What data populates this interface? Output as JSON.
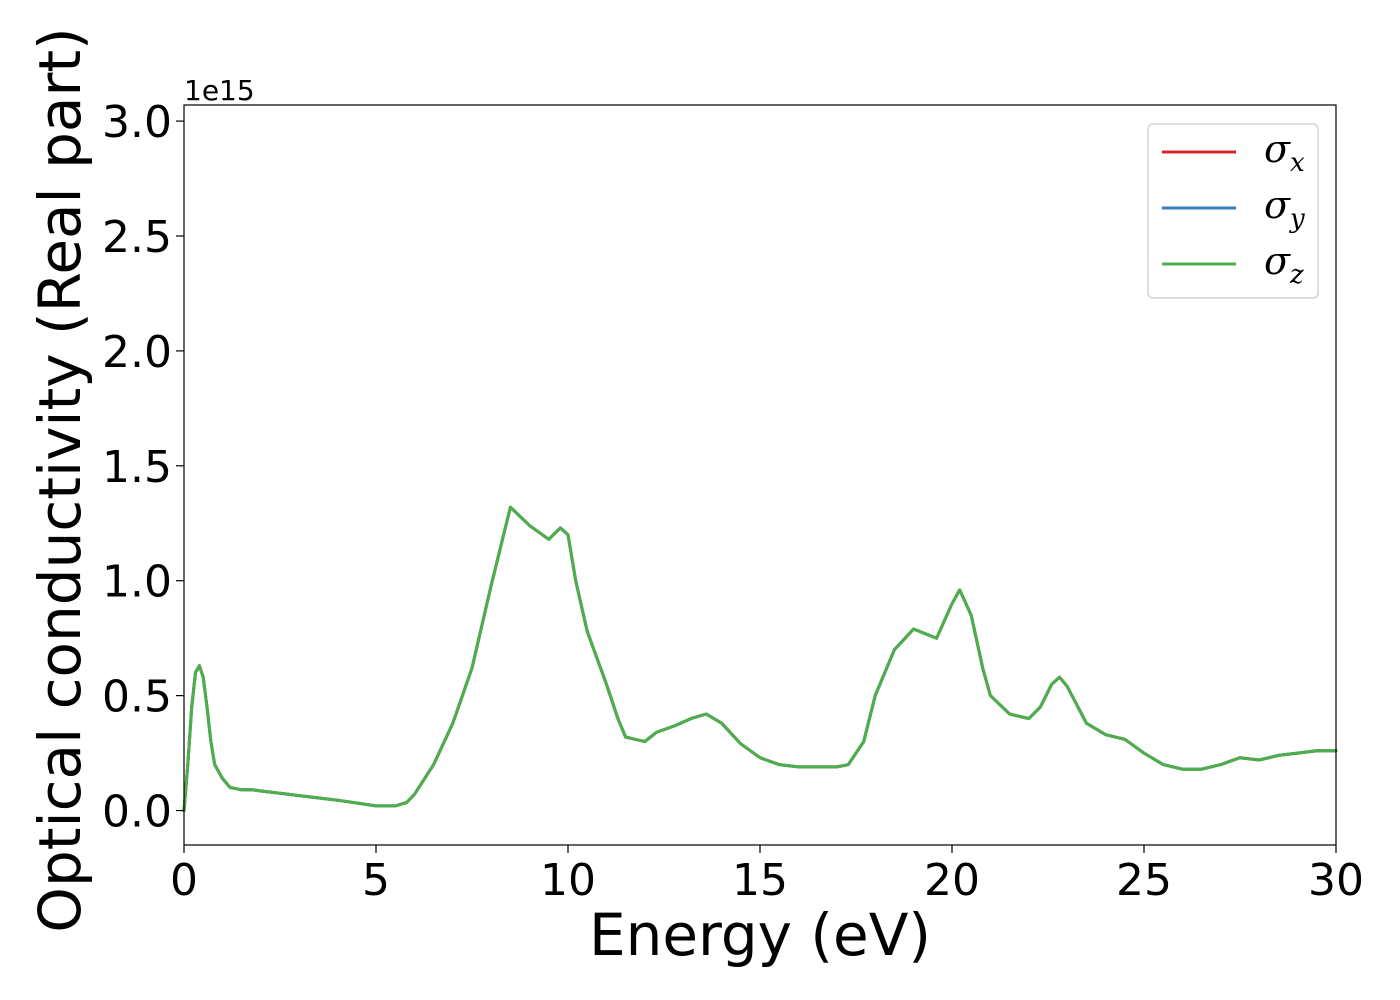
{
  "chart_data": {
    "type": "line",
    "xlabel": "Energy (eV)",
    "ylabel": "Optical conductivity (Real part)",
    "y_offset_label": "1e15",
    "xlim": [
      0,
      30
    ],
    "ylim": [
      -0.15,
      3.07
    ],
    "x_ticks": [
      0,
      5,
      10,
      15,
      20,
      25,
      30
    ],
    "x_tick_labels": [
      "0",
      "5",
      "10",
      "15",
      "20",
      "25",
      "30"
    ],
    "y_ticks": [
      0.0,
      0.5,
      1.0,
      1.5,
      2.0,
      2.5,
      3.0
    ],
    "y_tick_labels": [
      "0.0",
      "0.5",
      "1.0",
      "1.5",
      "2.0",
      "2.5",
      "3.0"
    ],
    "grid": false,
    "legend_position": "top-right",
    "legend": [
      {
        "base": "σ",
        "sub": "x",
        "color": "#d62728"
      },
      {
        "base": "σ",
        "sub": "y",
        "color": "#3b7bbf"
      },
      {
        "base": "σ",
        "sub": "z",
        "color": "#4daf4a"
      }
    ],
    "x": [
      0,
      0.1,
      0.2,
      0.3,
      0.4,
      0.5,
      0.6,
      0.7,
      0.8,
      1.0,
      1.2,
      1.5,
      1.8,
      2,
      2.5,
      3,
      4,
      5,
      5.5,
      5.8,
      6,
      6.5,
      7,
      7.5,
      8,
      8.5,
      9,
      9.5,
      9.8,
      10,
      10.2,
      10.5,
      11,
      11.3,
      11.5,
      12,
      12.3,
      12.8,
      13.2,
      13.6,
      14,
      14.5,
      15,
      15.5,
      16,
      16.5,
      17,
      17.3,
      17.7,
      18,
      18.5,
      19,
      19.3,
      19.6,
      20,
      20.2,
      20.5,
      20.8,
      21,
      21.5,
      22,
      22.3,
      22.6,
      22.8,
      23,
      23.5,
      24,
      24.5,
      25,
      25.5,
      26,
      26.5,
      27,
      27.5,
      28,
      28.5,
      29,
      29.5,
      30
    ],
    "series": [
      {
        "name": "σx",
        "color": "#d62728",
        "values": [
          0.0,
          0.2,
          0.45,
          0.6,
          0.63,
          0.58,
          0.45,
          0.3,
          0.2,
          0.14,
          0.1,
          0.09,
          0.09,
          0.085,
          0.075,
          0.065,
          0.045,
          0.02,
          0.02,
          0.035,
          0.07,
          0.2,
          0.38,
          0.62,
          0.98,
          1.32,
          1.24,
          1.18,
          1.23,
          1.2,
          1.0,
          0.78,
          0.55,
          0.4,
          0.32,
          0.3,
          0.34,
          0.37,
          0.4,
          0.42,
          0.38,
          0.29,
          0.23,
          0.2,
          0.19,
          0.19,
          0.19,
          0.2,
          0.3,
          0.5,
          0.7,
          0.79,
          0.77,
          0.75,
          0.9,
          0.96,
          0.85,
          0.62,
          0.5,
          0.42,
          0.4,
          0.45,
          0.55,
          0.58,
          0.54,
          0.38,
          0.33,
          0.31,
          0.25,
          0.2,
          0.18,
          0.18,
          0.2,
          0.23,
          0.22,
          0.24,
          0.25,
          0.26,
          0.26
        ]
      },
      {
        "name": "σy",
        "color": "#3b7bbf",
        "values": [
          0.0,
          0.2,
          0.45,
          0.6,
          0.63,
          0.58,
          0.45,
          0.3,
          0.2,
          0.14,
          0.1,
          0.09,
          0.09,
          0.085,
          0.075,
          0.065,
          0.045,
          0.02,
          0.02,
          0.035,
          0.07,
          0.2,
          0.38,
          0.62,
          0.98,
          1.32,
          1.24,
          1.18,
          1.23,
          1.2,
          1.0,
          0.78,
          0.55,
          0.4,
          0.32,
          0.3,
          0.34,
          0.37,
          0.4,
          0.42,
          0.38,
          0.29,
          0.23,
          0.2,
          0.19,
          0.19,
          0.19,
          0.2,
          0.3,
          0.5,
          0.7,
          0.79,
          0.77,
          0.75,
          0.9,
          0.96,
          0.85,
          0.62,
          0.5,
          0.42,
          0.4,
          0.45,
          0.55,
          0.58,
          0.54,
          0.38,
          0.33,
          0.31,
          0.25,
          0.2,
          0.18,
          0.18,
          0.2,
          0.23,
          0.22,
          0.24,
          0.25,
          0.26,
          0.26
        ]
      },
      {
        "name": "σz",
        "color": "#4daf4a",
        "values": [
          0.0,
          0.2,
          0.45,
          0.6,
          0.63,
          0.58,
          0.45,
          0.3,
          0.2,
          0.14,
          0.1,
          0.09,
          0.09,
          0.085,
          0.075,
          0.065,
          0.045,
          0.02,
          0.02,
          0.035,
          0.07,
          0.2,
          0.38,
          0.62,
          0.98,
          1.32,
          1.24,
          1.18,
          1.23,
          1.2,
          1.0,
          0.78,
          0.55,
          0.4,
          0.32,
          0.3,
          0.34,
          0.37,
          0.4,
          0.42,
          0.38,
          0.29,
          0.23,
          0.2,
          0.19,
          0.19,
          0.19,
          0.2,
          0.3,
          0.5,
          0.7,
          0.79,
          0.77,
          0.75,
          0.9,
          0.96,
          0.85,
          0.62,
          0.5,
          0.42,
          0.4,
          0.45,
          0.55,
          0.58,
          0.54,
          0.38,
          0.33,
          0.31,
          0.25,
          0.2,
          0.18,
          0.18,
          0.2,
          0.23,
          0.22,
          0.24,
          0.25,
          0.26,
          0.26
        ]
      }
    ]
  }
}
